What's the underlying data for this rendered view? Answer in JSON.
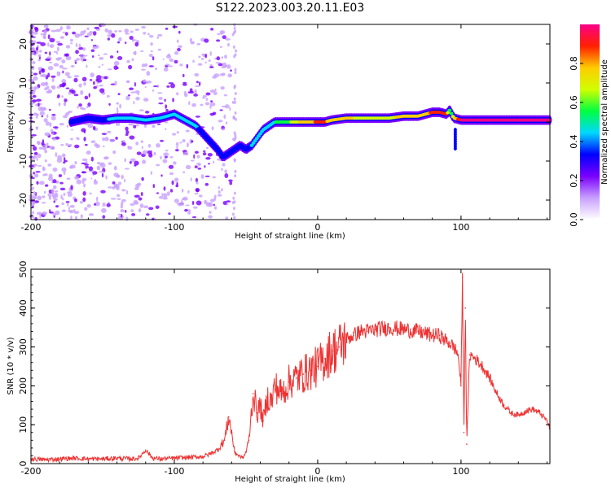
{
  "title": "S122.2023.003.20.11.E03",
  "chart_data": [
    {
      "type": "heatmap",
      "xlabel": "Height of straight line (km)",
      "ylabel": "Frequency (Hz)",
      "xlim": [
        -200,
        162
      ],
      "ylim": [
        -25,
        25
      ],
      "xticks": [
        "-200",
        "-100",
        "0",
        "100"
      ],
      "yticks": [
        "-20",
        "-10",
        "0",
        "10",
        "20"
      ],
      "colorbar": {
        "label": "Normalized spectral amplitude",
        "range": [
          0,
          1
        ],
        "ticks": [
          "0.0",
          "0.2",
          "0.4",
          "0.6",
          "0.8"
        ],
        "colors": [
          "#ffffff",
          "#c8a0ff",
          "#7a00ff",
          "#0000ff",
          "#00d8ff",
          "#00ff40",
          "#d0ff00",
          "#ffcc00",
          "#ff2000",
          "#ff0088"
        ]
      },
      "ridge": {
        "x": [
          -172,
          -160,
          -150,
          -140,
          -130,
          -120,
          -110,
          -100,
          -95,
          -90,
          -85,
          -80,
          -75,
          -70,
          -66,
          -62,
          -58,
          -54,
          -50,
          -46,
          -42,
          -38,
          -34,
          -30,
          -25,
          -20,
          -15,
          -10,
          -5,
          0,
          5,
          10,
          20,
          30,
          40,
          50,
          60,
          70,
          75,
          80,
          85,
          90,
          92,
          95,
          100,
          110,
          120,
          130,
          140,
          150,
          162
        ],
        "y": [
          0,
          1,
          0.5,
          1,
          1,
          0.5,
          1,
          2,
          1,
          0,
          -1,
          -3,
          -5,
          -7,
          -9,
          -8,
          -7,
          -6,
          -7,
          -6,
          -4,
          -2,
          -1,
          0,
          0,
          0,
          0,
          0,
          0,
          0,
          0,
          0.5,
          1,
          1,
          1,
          1,
          1.5,
          1.5,
          2,
          2.5,
          2.5,
          2,
          3,
          1,
          0.5,
          0.5,
          0.5,
          0.5,
          0.5,
          0.5,
          0.5
        ],
        "amplitude": [
          0.3,
          0.35,
          0.35,
          0.45,
          0.45,
          0.45,
          0.45,
          0.45,
          0.45,
          0.4,
          0.4,
          0.35,
          0.35,
          0.35,
          0.35,
          0.35,
          0.35,
          0.35,
          0.35,
          0.4,
          0.4,
          0.4,
          0.45,
          0.5,
          0.55,
          0.6,
          0.7,
          0.75,
          0.8,
          0.85,
          0.85,
          0.8,
          0.75,
          0.7,
          0.7,
          0.7,
          0.75,
          0.8,
          0.8,
          0.85,
          0.9,
          0.85,
          0.5,
          0.7,
          0.95,
          0.95,
          0.95,
          0.95,
          0.95,
          0.95,
          0.95
        ]
      }
    },
    {
      "type": "line",
      "xlabel": "Height of straight line (km)",
      "ylabel": "SNR (10 * v/v)",
      "xlim": [
        -200,
        162
      ],
      "ylim": [
        0,
        500
      ],
      "xticks": [
        "-200",
        "-100",
        "0",
        "100"
      ],
      "yticks": [
        "0",
        "100",
        "200",
        "300",
        "400",
        "500"
      ],
      "series": [
        {
          "color": "#ee3333",
          "x": [
            -200,
            -190,
            -180,
            -170,
            -160,
            -150,
            -140,
            -130,
            -125,
            -120,
            -115,
            -110,
            -100,
            -90,
            -80,
            -75,
            -70,
            -65,
            -62,
            -60,
            -58,
            -55,
            -52,
            -50,
            -48,
            -45,
            -42,
            -40,
            -38,
            -35,
            -32,
            -30,
            -25,
            -20,
            -15,
            -10,
            -5,
            0,
            5,
            10,
            15,
            20,
            25,
            30,
            35,
            40,
            50,
            60,
            70,
            75,
            80,
            85,
            88,
            90,
            92,
            95,
            98,
            100,
            101,
            102,
            103,
            104,
            106,
            110,
            115,
            120,
            125,
            130,
            135,
            140,
            145,
            150,
            155,
            160,
            162
          ],
          "y": [
            12,
            10,
            12,
            14,
            12,
            12,
            14,
            12,
            14,
            35,
            14,
            12,
            14,
            16,
            18,
            25,
            35,
            60,
            120,
            80,
            30,
            20,
            15,
            30,
            60,
            180,
            130,
            150,
            110,
            170,
            160,
            200,
            180,
            210,
            220,
            230,
            240,
            250,
            270,
            290,
            300,
            320,
            330,
            340,
            340,
            345,
            350,
            345,
            340,
            335,
            330,
            330,
            320,
            315,
            310,
            300,
            280,
            200,
            480,
            80,
            400,
            50,
            280,
            270,
            250,
            220,
            180,
            150,
            130,
            125,
            135,
            140,
            130,
            110,
            90
          ]
        }
      ]
    }
  ]
}
